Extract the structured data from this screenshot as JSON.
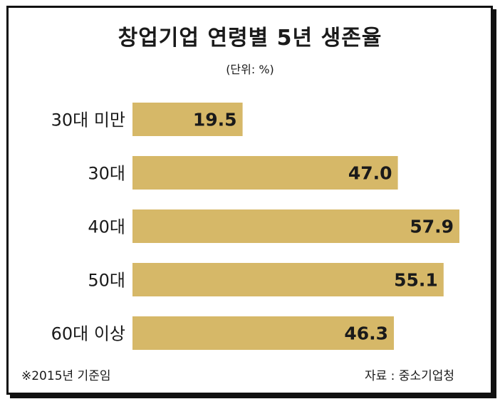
{
  "colors": {
    "bar": "#d6b868",
    "text": "#1a1a1a",
    "border": "#111111"
  },
  "chart_data": {
    "type": "bar",
    "orientation": "horizontal",
    "title": "창업기업 연령별 5년 생존율",
    "unit": "(단위: %)",
    "categories": [
      "30대 미만",
      "30대",
      "40대",
      "50대",
      "60대 이상"
    ],
    "values": [
      19.5,
      47.0,
      57.9,
      55.1,
      46.3
    ],
    "value_labels": [
      "19.5",
      "47.0",
      "57.9",
      "55.1",
      "46.3"
    ],
    "xlim": [
      0,
      57.9
    ],
    "grid": false,
    "legend": "none"
  },
  "footnote": "※2015년 기준임",
  "source": "자료 : 중소기업청"
}
